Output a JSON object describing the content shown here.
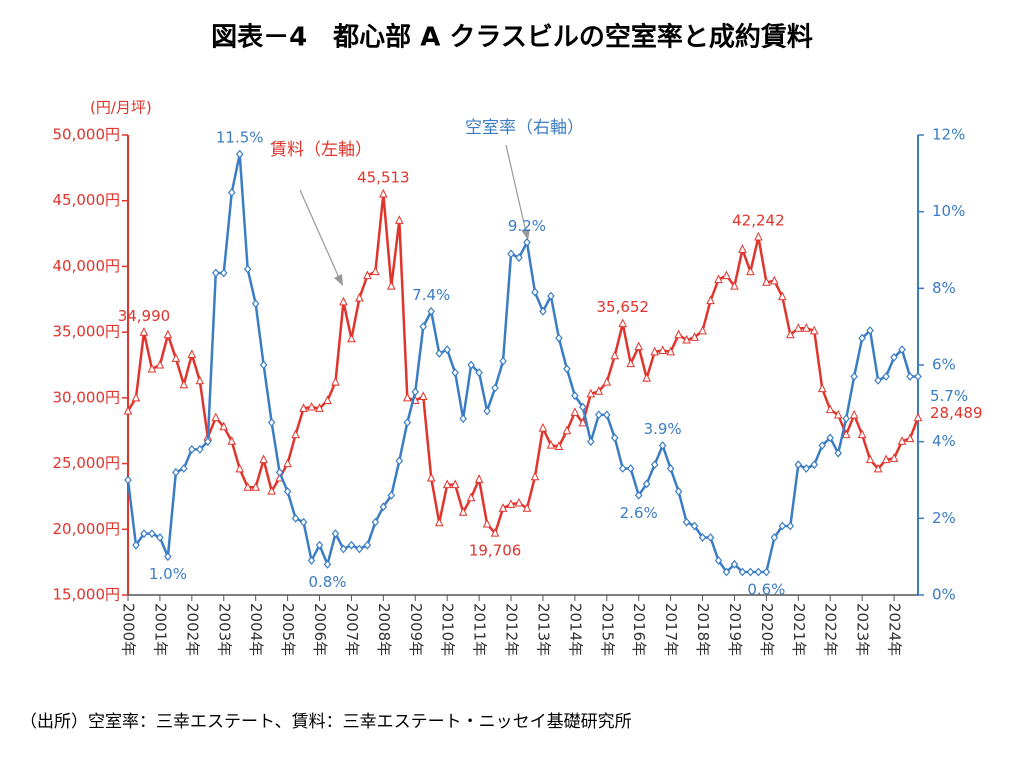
{
  "chart_data": {
    "type": "line",
    "title": "図表－4　都心部 A クラスビルの空室率と成約賃料",
    "y_unit_label": "(円/月坪)",
    "source": "（出所）空室率：三幸エステート、賃料：三幸エステート・ニッセイ基礎研究所",
    "categories": [
      "2000年",
      null,
      null,
      null,
      "2001年",
      null,
      null,
      null,
      "2002年",
      null,
      null,
      null,
      "2003年",
      null,
      null,
      null,
      "2004年",
      null,
      null,
      null,
      "2005年",
      null,
      null,
      null,
      "2006年",
      null,
      null,
      null,
      "2007年",
      null,
      null,
      null,
      "2008年",
      null,
      null,
      null,
      "2009年",
      null,
      null,
      null,
      "2010年",
      null,
      null,
      null,
      "2011年",
      null,
      null,
      null,
      "2012年",
      null,
      null,
      null,
      "2013年",
      null,
      null,
      null,
      "2014年",
      null,
      null,
      null,
      "2015年",
      null,
      null,
      null,
      "2016年",
      null,
      null,
      null,
      "2017年",
      null,
      null,
      null,
      "2018年",
      null,
      null,
      null,
      "2019年",
      null,
      null,
      null,
      "2020年",
      null,
      null,
      null,
      "2021年",
      null,
      null,
      null,
      "2022年",
      null,
      null,
      null,
      "2023年",
      null,
      null,
      null,
      "2024年",
      null,
      null,
      null
    ],
    "ylim": [
      15000,
      50000
    ],
    "yticks": [
      {
        "value": 15000,
        "label": "15,000円"
      },
      {
        "value": 20000,
        "label": "20,000円"
      },
      {
        "value": 25000,
        "label": "25,000円"
      },
      {
        "value": 30000,
        "label": "30,000円"
      },
      {
        "value": 35000,
        "label": "35,000円"
      },
      {
        "value": 40000,
        "label": "40,000円"
      },
      {
        "value": 45000,
        "label": "45,000円"
      },
      {
        "value": 50000,
        "label": "50,000円"
      }
    ],
    "y2lim": [
      0,
      12
    ],
    "y2ticks": [
      {
        "value": 0,
        "label": "0%"
      },
      {
        "value": 2,
        "label": "2%"
      },
      {
        "value": 4,
        "label": "4%"
      },
      {
        "value": 6,
        "label": "6%"
      },
      {
        "value": 8,
        "label": "8%"
      },
      {
        "value": 10,
        "label": "10%"
      },
      {
        "value": 12,
        "label": "12%"
      }
    ],
    "series": [
      {
        "name": "賃料（左軸）",
        "color": "#e0342c",
        "axis": "y",
        "marker": "triangle",
        "values": [
          29000,
          30000,
          34990,
          32200,
          32500,
          34800,
          33000,
          31000,
          33300,
          31300,
          27000,
          28500,
          27800,
          26700,
          24600,
          23200,
          23200,
          25300,
          22900,
          23900,
          25000,
          27200,
          29200,
          29300,
          29200,
          29800,
          31200,
          37300,
          34500,
          37600,
          39300,
          39600,
          45513,
          38500,
          43500,
          30000,
          29800,
          30100,
          23900,
          20500,
          23400,
          23400,
          21300,
          22400,
          23800,
          20400,
          19706,
          21600,
          21900,
          22000,
          21600,
          24000,
          27700,
          26400,
          26300,
          27500,
          28900,
          28100,
          30300,
          30500,
          31200,
          33200,
          35652,
          32600,
          33900,
          31500,
          33500,
          33600,
          33500,
          34800,
          34400,
          34600,
          35100,
          37400,
          39000,
          39300,
          38500,
          41300,
          39600,
          42242,
          38800,
          38900,
          37700,
          34800,
          35300,
          35300,
          35100,
          30700,
          29100,
          28700,
          27200,
          28700,
          27200,
          25300,
          24600,
          25300,
          25400,
          26700,
          26900,
          28489
        ],
        "value_labels": [
          null,
          null,
          "34,990",
          null,
          null,
          null,
          null,
          null,
          null,
          null,
          null,
          null,
          null,
          null,
          null,
          null,
          null,
          null,
          null,
          null,
          null,
          null,
          null,
          null,
          null,
          null,
          null,
          null,
          null,
          null,
          null,
          null,
          "45,513",
          null,
          null,
          null,
          null,
          null,
          null,
          null,
          null,
          null,
          null,
          null,
          null,
          null,
          "19,706",
          null,
          null,
          null,
          null,
          null,
          null,
          null,
          null,
          null,
          null,
          null,
          null,
          null,
          null,
          null,
          "35,652",
          null,
          null,
          null,
          null,
          null,
          null,
          null,
          null,
          null,
          null,
          null,
          null,
          null,
          null,
          null,
          null,
          "42,242",
          null,
          null,
          null,
          null,
          null,
          null,
          null,
          null,
          null,
          null,
          null,
          null,
          null,
          null,
          null,
          null,
          null,
          null,
          null,
          "28,489"
        ]
      },
      {
        "name": "空室率（右軸）",
        "color": "#3b7dc4",
        "axis": "y2",
        "marker": "diamond",
        "values": [
          3.0,
          1.3,
          1.6,
          1.6,
          1.5,
          1.0,
          3.2,
          3.3,
          3.8,
          3.8,
          4.0,
          8.4,
          8.4,
          10.5,
          11.5,
          8.5,
          7.6,
          6.0,
          4.5,
          3.2,
          2.7,
          2.0,
          1.9,
          0.9,
          1.3,
          0.8,
          1.6,
          1.2,
          1.3,
          1.2,
          1.3,
          1.9,
          2.3,
          2.6,
          3.5,
          4.5,
          5.3,
          7.0,
          7.4,
          6.3,
          6.4,
          5.8,
          4.6,
          6.0,
          5.8,
          4.8,
          5.4,
          6.1,
          8.9,
          8.8,
          9.2,
          7.9,
          7.4,
          7.8,
          6.7,
          5.9,
          5.2,
          4.9,
          4.0,
          4.7,
          4.7,
          4.1,
          3.3,
          3.3,
          2.6,
          2.9,
          3.4,
          3.9,
          3.3,
          2.7,
          1.9,
          1.8,
          1.5,
          1.5,
          0.9,
          0.6,
          0.8,
          0.6,
          0.6,
          0.6,
          0.6,
          1.5,
          1.8,
          1.8,
          3.4,
          3.3,
          3.4,
          3.9,
          4.1,
          3.7,
          4.6,
          5.7,
          6.7,
          6.9,
          5.6,
          5.7,
          6.2,
          6.4,
          5.7,
          5.7
        ],
        "value_labels": [
          null,
          null,
          null,
          null,
          null,
          "1.0%",
          null,
          null,
          null,
          null,
          null,
          null,
          null,
          null,
          "11.5%",
          null,
          null,
          null,
          null,
          null,
          null,
          null,
          null,
          null,
          null,
          "0.8%",
          null,
          null,
          null,
          null,
          null,
          null,
          null,
          null,
          null,
          null,
          null,
          null,
          "7.4%",
          null,
          null,
          null,
          null,
          null,
          null,
          null,
          null,
          null,
          null,
          null,
          "9.2%",
          null,
          null,
          null,
          null,
          null,
          null,
          null,
          null,
          null,
          null,
          null,
          null,
          null,
          "2.6%",
          null,
          null,
          "3.9%",
          null,
          null,
          null,
          null,
          null,
          null,
          null,
          null,
          null,
          null,
          null,
          null,
          "0.6%",
          null,
          null,
          null,
          null,
          null,
          null,
          null,
          null,
          null,
          null,
          null,
          null,
          null,
          null,
          null,
          null,
          null,
          null,
          "5.7%"
        ]
      }
    ]
  }
}
